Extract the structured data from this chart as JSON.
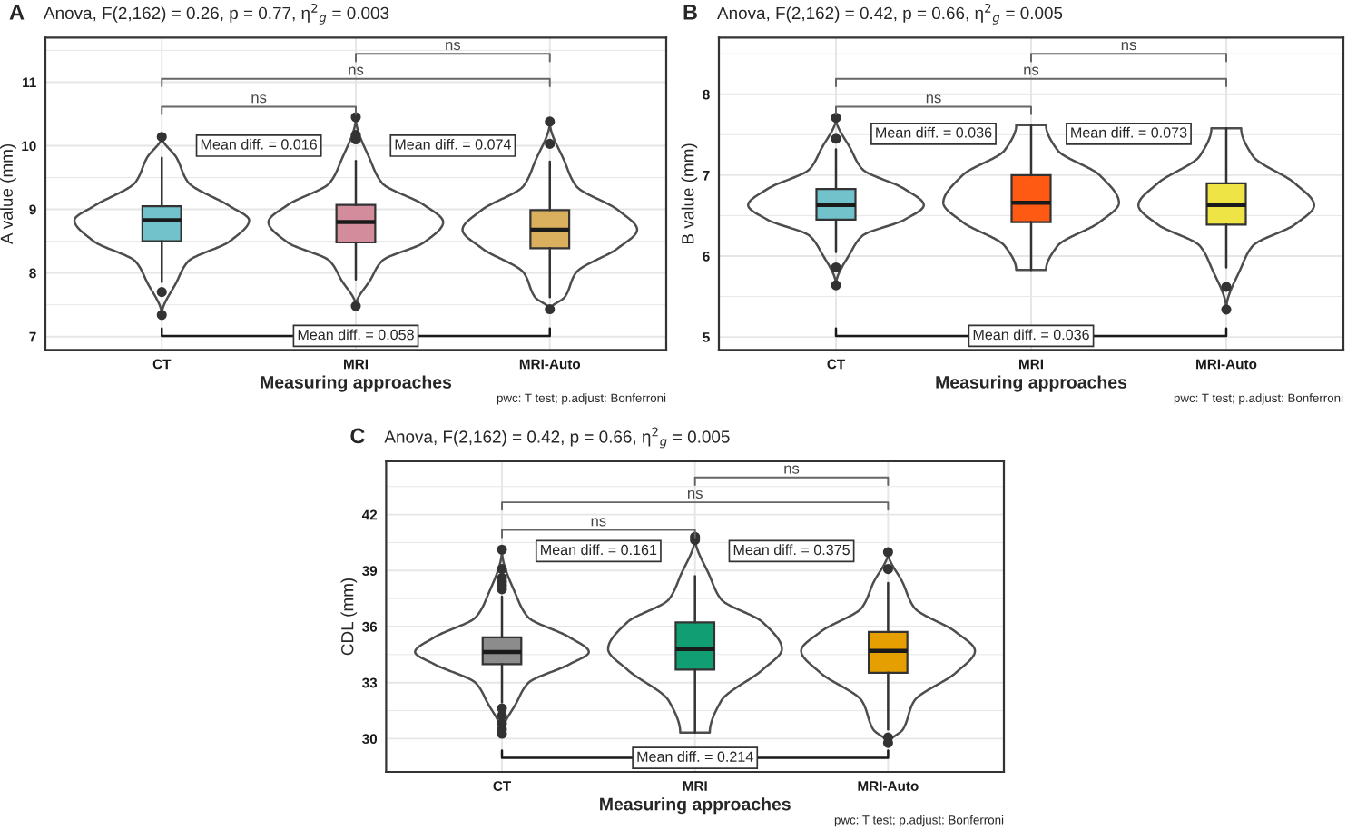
{
  "chart_data": [
    {
      "type": "box",
      "title": "A",
      "subtitle": "Anova, F(2,162) = 0.26, p = 0.77, η$^{2}$$_{g}$ = 0.003",
      "xlabel": "Measuring approaches",
      "ylabel": "A value (mm)",
      "categories": [
        "CT",
        "MRI",
        "MRI-Auto"
      ],
      "colors": [
        "#72c2cc",
        "#d38c9c",
        "#dab05e"
      ],
      "boxes": [
        {
          "low": 7.86,
          "q1": 8.5,
          "median": 8.83,
          "q3": 9.05,
          "high": 9.81,
          "outliers": [
            10.14,
            7.7,
            7.34
          ]
        },
        {
          "low": 7.9,
          "q1": 8.48,
          "median": 8.8,
          "q3": 9.07,
          "high": 9.76,
          "outliers": [
            10.45,
            10.17,
            10.1,
            7.48
          ]
        },
        {
          "low": 7.62,
          "q1": 8.39,
          "median": 8.68,
          "q3": 8.99,
          "high": 9.75,
          "outliers": [
            10.38,
            10.03,
            7.43
          ]
        }
      ],
      "ylim": [
        6.79,
        11.7
      ],
      "yticks": [
        7,
        {
          "value": 7.5,
          "label": null
        },
        8,
        {
          "value": 8.5,
          "label": null
        },
        9,
        {
          "value": 9.5,
          "label": null
        },
        10,
        {
          "value": 10.5,
          "label": null
        },
        11,
        {
          "value": 11.5,
          "label": null
        }
      ],
      "grid": true,
      "annotations": [
        "ns",
        "ns",
        "ns",
        "Mean diff. = 0.016",
        "Mean diff. = 0.074",
        "Mean diff. = 0.058",
        "pwc: T test; p.adjust: Bonferroni"
      ]
    },
    {
      "type": "box",
      "title": "B",
      "subtitle": "Anova, F(2,162) = 0.42, p = 0.66, η$^{2}$$_{g}$ = 0.005",
      "xlabel": "Measuring approaches",
      "ylabel": "B value (mm)",
      "categories": [
        "CT",
        "MRI",
        "MRI-Auto"
      ],
      "colors": [
        "#72c2cc",
        "#ff5a14",
        "#efe446"
      ],
      "boxes": [
        {
          "low": 6.05,
          "q1": 6.45,
          "median": 6.63,
          "q3": 6.83,
          "high": 7.32,
          "outliers": [
            7.71,
            7.45,
            5.86,
            5.64
          ]
        },
        {
          "low": 5.83,
          "q1": 6.42,
          "median": 6.66,
          "q3": 7.0,
          "high": 7.62
        },
        {
          "low": 5.86,
          "q1": 6.39,
          "median": 6.63,
          "q3": 6.9,
          "high": 7.58,
          "outliers": [
            5.62,
            5.34
          ]
        }
      ],
      "ylim": [
        4.84,
        8.7
      ],
      "yticks": [
        5,
        {
          "value": 5.5,
          "label": null
        },
        6,
        {
          "value": 6.5,
          "label": null
        },
        7,
        {
          "value": 7.5,
          "label": null
        },
        8,
        {
          "value": 8.5,
          "label": null
        }
      ],
      "grid": true,
      "annotations": [
        "ns",
        "ns",
        "ns",
        "Mean diff. = 0.036",
        "Mean diff. = 0.073",
        "Mean diff. = 0.036",
        "pwc: T test; p.adjust: Bonferroni"
      ]
    },
    {
      "type": "box",
      "title": "C",
      "subtitle": "Anova, F(2,162) = 0.42, p = 0.66, η$^{2}$$_{g}$ = 0.005",
      "xlabel": "Measuring approaches",
      "ylabel": "CDL (mm)",
      "categories": [
        "CT",
        "MRI",
        "MRI-Auto"
      ],
      "colors": [
        "#8c8c8c",
        "#129e73",
        "#e69f00"
      ],
      "boxes": [
        {
          "low": 31.95,
          "q1": 33.99,
          "median": 34.64,
          "q3": 35.42,
          "high": 37.6,
          "outliers": [
            40.12,
            39.08,
            38.6,
            38.4,
            38.2,
            38.0,
            31.62,
            31.23,
            30.81,
            30.49,
            30.26
          ]
        },
        {
          "low": 30.32,
          "q1": 33.7,
          "median": 34.8,
          "q3": 36.23,
          "high": 38.7,
          "outliers": [
            40.8,
            40.64
          ]
        },
        {
          "low": 30.49,
          "q1": 33.53,
          "median": 34.7,
          "q3": 35.71,
          "high": 38.34,
          "outliers": [
            39.99,
            39.08,
            30.06,
            29.77
          ]
        }
      ],
      "ylim": [
        28.22,
        44.85
      ],
      "yticks": [
        30,
        {
          "value": 31.5,
          "label": null
        },
        33,
        {
          "value": 34.5,
          "label": null
        },
        36,
        {
          "value": 37.5,
          "label": null
        },
        39,
        {
          "value": 40.5,
          "label": null
        },
        42,
        {
          "value": 43.5,
          "label": null
        }
      ],
      "grid": true,
      "annotations": [
        "ns",
        "ns",
        "ns",
        "Mean diff. = 0.161",
        "Mean diff. = 0.375",
        "Mean diff. = 0.214",
        "pwc: T test; p.adjust: Bonferroni"
      ]
    }
  ]
}
